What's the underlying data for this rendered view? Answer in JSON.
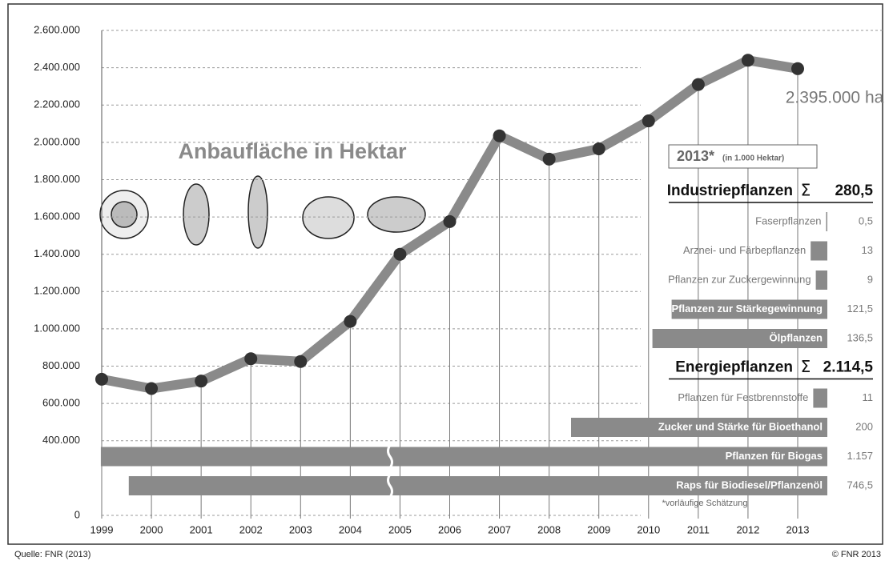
{
  "chart_data": {
    "type": "line",
    "title": "Anbaufläche in Hektar",
    "categories": [
      "1999",
      "2000",
      "2001",
      "2002",
      "2003",
      "2004",
      "2005",
      "2006",
      "2007",
      "2008",
      "2009",
      "2010",
      "2011",
      "2012",
      "2013"
    ],
    "values": [
      730000,
      680000,
      720000,
      840000,
      825000,
      1040000,
      1400000,
      1575000,
      2035000,
      1910000,
      1965000,
      2115000,
      2310000,
      2440000,
      2395000
    ],
    "color": "#8a8a8a",
    "marker_color": "#333333",
    "annotation": "2.395.000 ha",
    "ylim": [
      0,
      2600000
    ],
    "yticks": [
      {
        "value": 0,
        "label": "0"
      },
      {
        "value": 400000,
        "label": "400.000"
      },
      {
        "value": 600000,
        "label": "600.000"
      },
      {
        "value": 800000,
        "label": "800.000"
      },
      {
        "value": 1000000,
        "label": "1.000.000"
      },
      {
        "value": 1200000,
        "label": "1.200.000"
      },
      {
        "value": 1400000,
        "label": "1.400.000"
      },
      {
        "value": 1600000,
        "label": "1.600.000"
      },
      {
        "value": 1800000,
        "label": "1.800.000"
      },
      {
        "value": 2000000,
        "label": "2.000.000"
      },
      {
        "value": 2200000,
        "label": "2.200.000"
      },
      {
        "value": 2400000,
        "label": "2.400.000"
      },
      {
        "value": 2600000,
        "label": "2.600.000"
      }
    ],
    "grid": true
  },
  "panel": {
    "title": "2013*",
    "subtitle": "(in 1.000 Hektar)",
    "sum_sign": "Σ",
    "bar_color": "#8a8a8a",
    "groups": [
      {
        "name": "Industriepflanzen",
        "total": 280.5,
        "total_label": "280,5",
        "items": [
          {
            "name": "Faserpflanzen",
            "value": 0.5,
            "value_label": "0,5"
          },
          {
            "name": "Arznei- und Färbepflanzen",
            "value": 13,
            "value_label": "13"
          },
          {
            "name": "Pflanzen zur Zuckergewinnung",
            "value": 9,
            "value_label": "9"
          },
          {
            "name": "Pflanzen zur Stärkegewinnung",
            "value": 121.5,
            "value_label": "121,5"
          },
          {
            "name": "Ölpflanzen",
            "value": 136.5,
            "value_label": "136,5"
          }
        ]
      },
      {
        "name": "Energiepflanzen",
        "total": 2114.5,
        "total_label": "2.114,5",
        "items": [
          {
            "name": "Pflanzen für Festbrennstoffe",
            "value": 11,
            "value_label": "11"
          },
          {
            "name": "Zucker und Stärke für Bioethanol",
            "value": 200,
            "value_label": "200"
          },
          {
            "name": "Pflanzen für Biogas",
            "value": 1157,
            "value_label": "1.157"
          },
          {
            "name": "Raps für Biodiesel/Pflanzenöl",
            "value": 746.5,
            "value_label": "746,5"
          }
        ]
      }
    ],
    "footnote": "*vorläufige Schätzung"
  },
  "source": "Quelle: FNR (2013)",
  "copyright": "© FNR 2013"
}
